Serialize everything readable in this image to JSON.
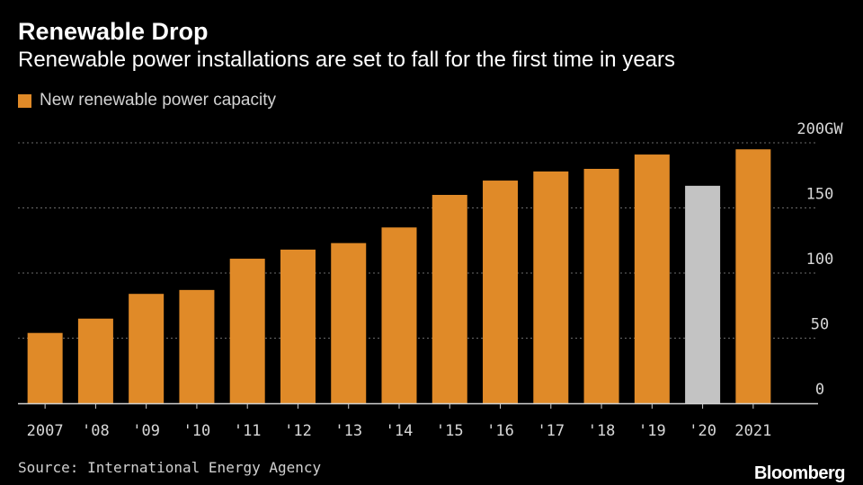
{
  "chart_data": {
    "type": "bar",
    "title": "Renewable Drop",
    "subtitle": "Renewable power installations are set to fall for the first time in years",
    "legend": [
      "New renewable power capacity"
    ],
    "categories": [
      "2007",
      "'08",
      "'09",
      "'10",
      "'11",
      "'12",
      "'13",
      "'14",
      "'15",
      "'16",
      "'17",
      "'18",
      "'19",
      "'20",
      "2021"
    ],
    "values": [
      54,
      65,
      84,
      87,
      111,
      118,
      123,
      135,
      160,
      171,
      178,
      180,
      191,
      167,
      195
    ],
    "highlight_categories": [
      "'20"
    ],
    "ylim": [
      0,
      200
    ],
    "yticks": [
      0,
      50,
      100,
      150,
      200
    ],
    "ytick_labels": [
      "0",
      "50",
      "100",
      "150",
      "200GW"
    ],
    "xlabel": "",
    "ylabel": "",
    "grid": true,
    "legend_position": "top-left",
    "y_axis_side": "right"
  },
  "colors": {
    "bar": "#e08a28",
    "highlight_bar": "#c3c3c3",
    "grid": "#6a6a6a",
    "axis": "#d0d0d0",
    "text": "#ffffff",
    "tick_text": "#d7d7d7"
  },
  "footer": {
    "source": "Source: International Energy Agency",
    "brand": "Bloomberg"
  }
}
